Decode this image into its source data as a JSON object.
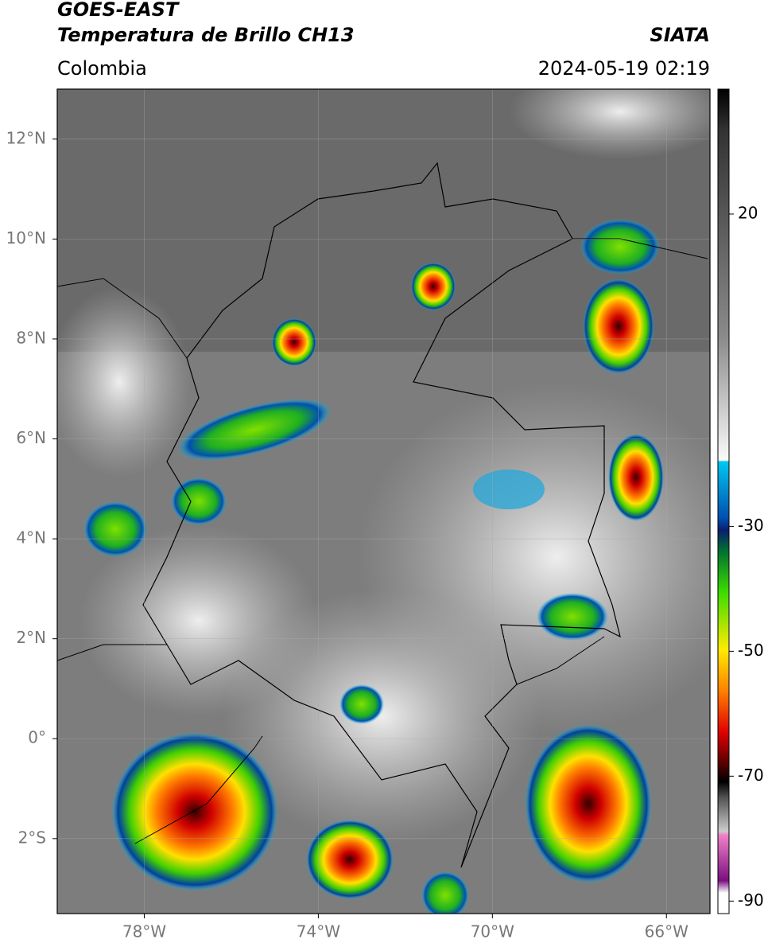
{
  "header": {
    "title": "GOES-EAST",
    "subtitle": "Temperatura de Brillo CH13",
    "source": "SIATA",
    "region": "Colombia",
    "timestamp": "2024-05-19 02:19"
  },
  "map": {
    "xlim": [
      -80,
      -65
    ],
    "ylim": [
      -3.5,
      13
    ],
    "xticks": [
      {
        "value": -78,
        "label": "78°W"
      },
      {
        "value": -74,
        "label": "74°W"
      },
      {
        "value": -70,
        "label": "70°W"
      },
      {
        "value": -66,
        "label": "66°W"
      }
    ],
    "yticks": [
      {
        "value": 12,
        "label": "12°N"
      },
      {
        "value": 10,
        "label": "10°N"
      },
      {
        "value": 8,
        "label": "8°N"
      },
      {
        "value": 6,
        "label": "6°N"
      },
      {
        "value": 4,
        "label": "4°N"
      },
      {
        "value": 2,
        "label": "2°N"
      },
      {
        "value": 0,
        "label": "0°"
      },
      {
        "value": -2,
        "label": "2°S"
      }
    ],
    "grid": true
  },
  "colorbar": {
    "lim": [
      -92,
      40
    ],
    "ticks": [
      20,
      -30,
      -50,
      -70,
      -90
    ]
  }
}
